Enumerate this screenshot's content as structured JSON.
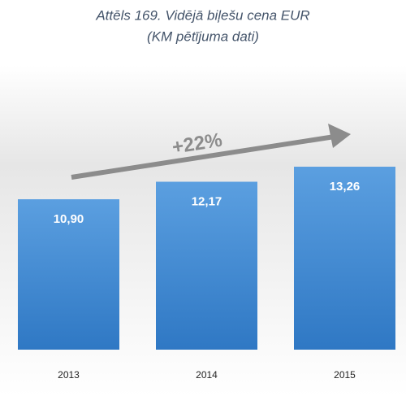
{
  "chart_data": {
    "type": "bar",
    "title": "Attēls 169. Vidējā biļešu cena EUR",
    "subtitle": "(KM pētījuma dati)",
    "annotation": "+22%",
    "categories": [
      "2013",
      "2014",
      "2015"
    ],
    "values": [
      10.9,
      12.17,
      13.26
    ],
    "value_labels": [
      "10,90",
      "12,17",
      "13,26"
    ],
    "color": "#4a8fd6"
  }
}
